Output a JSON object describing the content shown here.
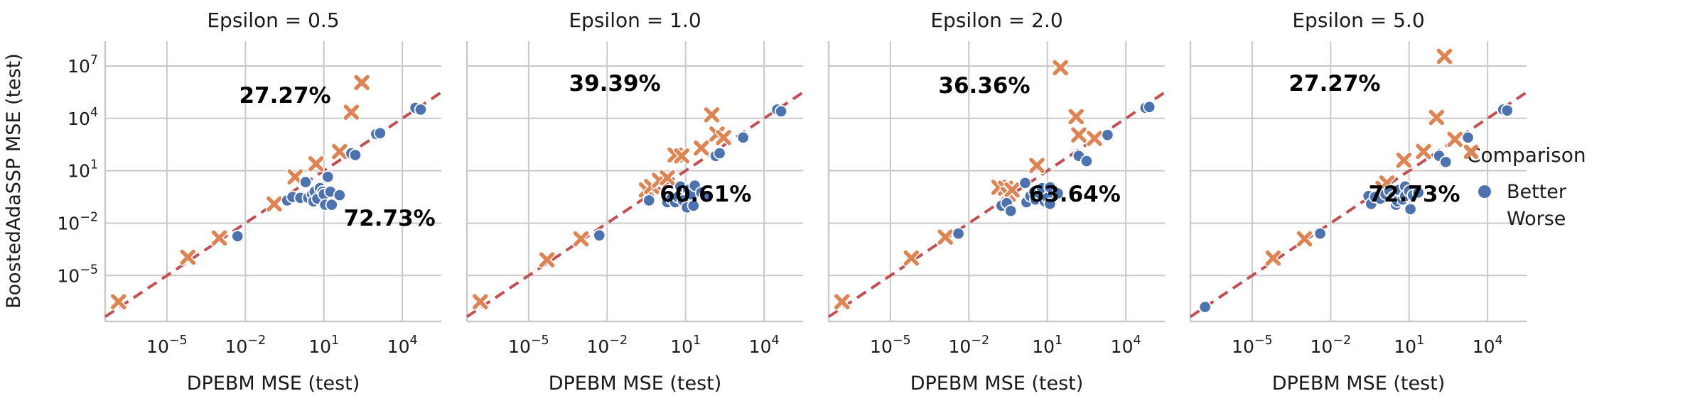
{
  "chart_data": {
    "type": "scatter",
    "xlabel": "DPEBM MSE (test)",
    "ylabel": "BoostedAdaSSP MSE (test)",
    "scale": "log-log",
    "x_tick_labels": [
      "10⁻⁵",
      "10⁻²",
      "10¹",
      "10⁴"
    ],
    "y_tick_labels": [
      "10⁷",
      "10⁴",
      "10¹",
      "10⁻²",
      "10⁻⁵"
    ],
    "x_tick_exponents": [
      -5,
      -2,
      1,
      4
    ],
    "y_tick_exponents": [
      7,
      4,
      1,
      -2,
      -5
    ],
    "x_range_exponents": [
      -7.36,
      5.49
    ],
    "y_range_exponents": [
      -7.63,
      8.42
    ],
    "grid": true,
    "reference_line": "y = x (dashed)",
    "colors": {
      "better": "#4C72B0",
      "worse": "#DD8452",
      "diagonal": "#C44E52",
      "grid": "#C9C9C9",
      "text": "#1a1a1a",
      "annotation": "#000000"
    },
    "legend": {
      "title": "Comparison",
      "position": "right",
      "items": [
        {
          "label": "Better",
          "marker": "circle"
        },
        {
          "label": "Worse",
          "marker": "x"
        }
      ]
    },
    "panels": [
      {
        "title": "Epsilon = 0.5",
        "annotations": [
          {
            "text": "27.27%",
            "fx": 0.535,
            "fy": 0.192
          },
          {
            "text": "72.73%",
            "fx": 0.846,
            "fy": 0.63
          }
        ],
        "better_log10": [
          [
            -2.3,
            -2.75
          ],
          [
            -0.4,
            -0.7
          ],
          [
            -0.2,
            -0.5
          ],
          [
            0.1,
            -0.55
          ],
          [
            0.3,
            0.35
          ],
          [
            0.4,
            -0.55
          ],
          [
            0.55,
            -0.35
          ],
          [
            0.6,
            -0.75
          ],
          [
            0.65,
            -0.2
          ],
          [
            0.75,
            -0.6
          ],
          [
            0.85,
            0.0
          ],
          [
            0.95,
            -0.2
          ],
          [
            1.0,
            -0.35
          ],
          [
            1.05,
            -0.95
          ],
          [
            1.15,
            0.65
          ],
          [
            1.25,
            -0.2
          ],
          [
            1.3,
            -0.95
          ],
          [
            1.6,
            -0.4
          ],
          [
            2.05,
            2.0
          ],
          [
            2.2,
            1.9
          ],
          [
            3.0,
            3.1
          ],
          [
            3.15,
            3.15
          ],
          [
            4.5,
            4.6
          ],
          [
            4.7,
            4.5
          ]
        ],
        "worse_log10": [
          [
            -6.85,
            -6.5
          ],
          [
            -4.2,
            -3.95
          ],
          [
            -3.0,
            -2.85
          ],
          [
            -0.9,
            -0.9
          ],
          [
            -0.1,
            0.65
          ],
          [
            0.7,
            1.4
          ],
          [
            1.6,
            2.1
          ],
          [
            2.05,
            4.35
          ],
          [
            2.45,
            6.05
          ]
        ]
      },
      {
        "title": "Epsilon = 1.0",
        "annotations": [
          {
            "text": "39.39%",
            "fx": 0.44,
            "fy": 0.149
          },
          {
            "text": "60.61%",
            "fx": 0.71,
            "fy": 0.544
          }
        ],
        "better_log10": [
          [
            -2.3,
            -2.7
          ],
          [
            -0.4,
            -0.7
          ],
          [
            0.3,
            -0.8
          ],
          [
            0.45,
            -0.6
          ],
          [
            0.6,
            -0.8
          ],
          [
            0.7,
            -0.5
          ],
          [
            0.8,
            0.1
          ],
          [
            0.9,
            -0.7
          ],
          [
            1.05,
            -1.1
          ],
          [
            1.1,
            -0.1
          ],
          [
            1.2,
            -0.35
          ],
          [
            1.3,
            -1.0
          ],
          [
            1.35,
            0.15
          ],
          [
            1.6,
            -0.25
          ],
          [
            1.75,
            -0.45
          ],
          [
            2.15,
            1.85
          ],
          [
            2.3,
            2.0
          ],
          [
            3.2,
            2.9
          ],
          [
            4.5,
            4.5
          ],
          [
            4.65,
            4.4
          ]
        ],
        "worse_log10": [
          [
            -6.85,
            -6.5
          ],
          [
            -4.3,
            -4.1
          ],
          [
            -3.0,
            -2.9
          ],
          [
            -0.5,
            -0.1
          ],
          [
            -0.3,
            0.1
          ],
          [
            0.0,
            0.45
          ],
          [
            0.3,
            0.6
          ],
          [
            0.6,
            1.9
          ],
          [
            0.85,
            1.85
          ],
          [
            1.6,
            2.3
          ],
          [
            2.0,
            4.2
          ],
          [
            2.2,
            3.1
          ],
          [
            2.45,
            2.9
          ]
        ]
      },
      {
        "title": "Epsilon = 2.0",
        "annotations": [
          {
            "text": "36.36%",
            "fx": 0.463,
            "fy": 0.157
          },
          {
            "text": "63.64%",
            "fx": 0.732,
            "fy": 0.544
          }
        ],
        "better_log10": [
          [
            -2.4,
            -2.6
          ],
          [
            -0.75,
            -1.0
          ],
          [
            -0.55,
            -0.85
          ],
          [
            -0.4,
            -1.3
          ],
          [
            0.15,
            0.3
          ],
          [
            0.2,
            -0.8
          ],
          [
            0.35,
            -0.45
          ],
          [
            0.5,
            -0.2
          ],
          [
            0.55,
            -0.65
          ],
          [
            0.7,
            -0.3
          ],
          [
            0.8,
            0.0
          ],
          [
            0.9,
            -0.75
          ],
          [
            1.0,
            -0.55
          ],
          [
            1.1,
            0.05
          ],
          [
            1.1,
            -0.9
          ],
          [
            1.4,
            -0.3
          ],
          [
            2.2,
            1.85
          ],
          [
            2.5,
            1.55
          ],
          [
            3.3,
            3.05
          ],
          [
            4.75,
            4.6
          ],
          [
            4.9,
            4.65
          ]
        ],
        "worse_log10": [
          [
            -6.85,
            -6.5
          ],
          [
            -4.2,
            -4.0
          ],
          [
            -2.9,
            -2.8
          ],
          [
            -0.85,
            0.05
          ],
          [
            -0.6,
            0.0
          ],
          [
            -0.5,
            -0.35
          ],
          [
            -0.35,
            -0.1
          ],
          [
            0.6,
            1.3
          ],
          [
            1.5,
            6.9
          ],
          [
            2.1,
            4.1
          ],
          [
            2.2,
            3.05
          ],
          [
            2.8,
            2.85
          ]
        ]
      },
      {
        "title": "Epsilon = 5.0",
        "annotations": [
          {
            "text": "27.27%",
            "fx": 0.429,
            "fy": 0.149
          },
          {
            "text": "72.73%",
            "fx": 0.666,
            "fy": 0.544
          }
        ],
        "better_log10": [
          [
            -6.8,
            -6.8
          ],
          [
            -2.4,
            -2.6
          ],
          [
            -0.55,
            -0.45
          ],
          [
            -0.45,
            -0.9
          ],
          [
            -0.3,
            -0.5
          ],
          [
            -0.1,
            -0.6
          ],
          [
            0.1,
            -0.35
          ],
          [
            0.25,
            -0.15
          ],
          [
            0.4,
            -0.5
          ],
          [
            0.5,
            -0.95
          ],
          [
            0.55,
            -0.75
          ],
          [
            0.6,
            -0.1
          ],
          [
            0.75,
            -0.65
          ],
          [
            0.85,
            0.1
          ],
          [
            0.85,
            -0.45
          ],
          [
            1.0,
            -0.15
          ],
          [
            1.05,
            -1.2
          ],
          [
            1.15,
            -0.4
          ],
          [
            1.35,
            -0.25
          ],
          [
            2.15,
            1.85
          ],
          [
            2.4,
            1.5
          ],
          [
            3.25,
            2.9
          ],
          [
            4.6,
            4.5
          ],
          [
            4.75,
            4.45
          ]
        ],
        "worse_log10": [
          [
            -4.2,
            -4.0
          ],
          [
            -3.0,
            -2.9
          ],
          [
            0.0,
            0.0
          ],
          [
            0.15,
            0.3
          ],
          [
            0.8,
            1.6
          ],
          [
            1.55,
            2.1
          ],
          [
            2.05,
            4.05
          ],
          [
            2.75,
            2.8
          ],
          [
            2.35,
            7.55
          ]
        ]
      }
    ]
  }
}
